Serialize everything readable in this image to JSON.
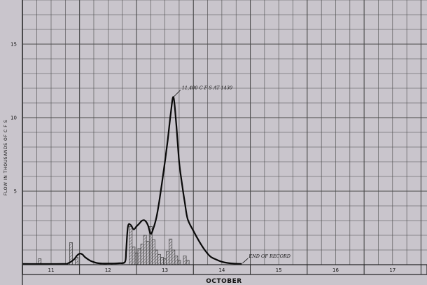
{
  "chart_data": {
    "type": "line",
    "title": "",
    "xlabel": "OCTOBER",
    "ylabel": "FLOW IN THOUSANDS OF C F S",
    "x_unit": "day of October",
    "y_unit": "thousands of cfs",
    "xlim": [
      10.5,
      17.9
    ],
    "ylim": [
      0,
      18
    ],
    "x_tick_labels": [
      "11",
      "12",
      "13",
      "14",
      "15",
      "16",
      "17"
    ],
    "y_tick_labels": [
      "5",
      "10",
      "15"
    ],
    "grid": true,
    "series": [
      {
        "kind": "line",
        "x": [
          10.5,
          11.2,
          11.3,
          11.4,
          11.45,
          11.5,
          11.55,
          11.6,
          11.7,
          11.8,
          11.9,
          12.0,
          12.1,
          12.2,
          12.3,
          12.32,
          12.35,
          12.4,
          12.45,
          12.5,
          12.55,
          12.6,
          12.65,
          12.7,
          12.75,
          12.8,
          12.85,
          12.9,
          12.95,
          13.0,
          13.05,
          13.1,
          13.15,
          13.2,
          13.25,
          13.3,
          13.35,
          13.4,
          13.5,
          13.6,
          13.7,
          13.8,
          13.9,
          14.0,
          14.1,
          14.2,
          14.35
        ],
        "values": [
          0.05,
          0.05,
          0.1,
          0.35,
          0.6,
          0.75,
          0.7,
          0.5,
          0.25,
          0.12,
          0.08,
          0.08,
          0.08,
          0.1,
          0.2,
          1.0,
          2.6,
          2.7,
          2.4,
          2.6,
          2.8,
          3.0,
          3.0,
          2.7,
          2.1,
          2.5,
          3.2,
          4.3,
          5.6,
          7.0,
          8.5,
          10.2,
          11.4,
          9.5,
          7.0,
          5.5,
          4.2,
          3.1,
          2.3,
          1.6,
          1.0,
          0.55,
          0.35,
          0.2,
          0.12,
          0.08,
          0.05
        ]
      },
      {
        "kind": "histogram",
        "bar_width_days": 0.05,
        "bars": [
          {
            "x": 10.8,
            "value": 0.4
          },
          {
            "x": 11.35,
            "value": 1.5
          },
          {
            "x": 11.45,
            "value": 0.5
          },
          {
            "x": 12.4,
            "value": 2.6
          },
          {
            "x": 12.45,
            "value": 1.2
          },
          {
            "x": 12.5,
            "value": 0.8
          },
          {
            "x": 12.55,
            "value": 1.1
          },
          {
            "x": 12.6,
            "value": 1.4
          },
          {
            "x": 12.65,
            "value": 2.0
          },
          {
            "x": 12.7,
            "value": 1.6
          },
          {
            "x": 12.75,
            "value": 2.6
          },
          {
            "x": 12.8,
            "value": 1.7
          },
          {
            "x": 12.85,
            "value": 1.0
          },
          {
            "x": 12.9,
            "value": 0.7
          },
          {
            "x": 12.95,
            "value": 0.5
          },
          {
            "x": 13.0,
            "value": 0.4
          },
          {
            "x": 13.05,
            "value": 0.9
          },
          {
            "x": 13.1,
            "value": 1.75
          },
          {
            "x": 13.15,
            "value": 1.0
          },
          {
            "x": 13.2,
            "value": 0.6
          },
          {
            "x": 13.25,
            "value": 0.3
          },
          {
            "x": 13.35,
            "value": 0.6
          },
          {
            "x": 13.4,
            "value": 0.3
          }
        ]
      }
    ],
    "annotations": [
      {
        "text": "11,400 C F S AT 1430",
        "x": 13.15,
        "y": 11.4
      },
      {
        "text": "END OF RECORD",
        "x": 14.35,
        "y": 0.05
      }
    ]
  },
  "colors": {
    "background": "#c9c5cc",
    "grid": "#4a4a4a",
    "line": "#0a0a0a",
    "hatch": "#5a5a5a"
  }
}
